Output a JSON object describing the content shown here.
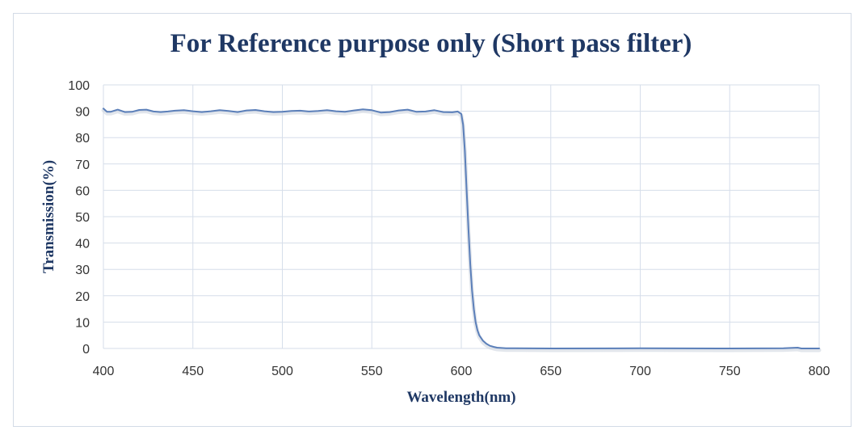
{
  "chart_data": {
    "type": "line",
    "title": "For Reference purpose only (Short pass filter)",
    "xlabel": "Wavelength(nm)",
    "ylabel": "Transmission(%)",
    "xlim": [
      400,
      800
    ],
    "ylim": [
      0,
      100
    ],
    "xticks": [
      400,
      450,
      500,
      550,
      600,
      650,
      700,
      750,
      800
    ],
    "yticks": [
      0,
      10,
      20,
      30,
      40,
      50,
      60,
      70,
      80,
      90,
      100
    ],
    "grid": true,
    "line_color": "#5b7fb9",
    "series": [
      {
        "x": [
          400,
          402,
          404,
          408,
          412,
          416,
          420,
          424,
          428,
          432,
          436,
          440,
          445,
          450,
          455,
          460,
          465,
          470,
          475,
          480,
          485,
          490,
          495,
          500,
          505,
          510,
          515,
          520,
          525,
          530,
          535,
          540,
          545,
          550,
          555,
          560,
          565,
          570,
          575,
          580,
          585,
          590,
          595,
          598,
          600,
          601,
          602,
          603,
          604,
          605,
          606,
          607,
          608,
          609,
          610,
          612,
          614,
          616,
          618,
          620,
          625,
          630,
          640,
          650,
          700,
          750,
          780,
          788,
          790,
          800
        ],
        "y": [
          91,
          89.8,
          89.8,
          90.6,
          89.7,
          89.8,
          90.5,
          90.6,
          89.9,
          89.7,
          89.9,
          90.2,
          90.4,
          90.0,
          89.7,
          90.0,
          90.4,
          90.1,
          89.7,
          90.3,
          90.5,
          90.0,
          89.7,
          89.8,
          90.1,
          90.2,
          89.9,
          90.1,
          90.4,
          90.0,
          89.8,
          90.3,
          90.7,
          90.4,
          89.5,
          89.7,
          90.3,
          90.6,
          89.8,
          89.9,
          90.4,
          89.7,
          89.6,
          89.9,
          89.0,
          85,
          75,
          60,
          45,
          32,
          22,
          15,
          10,
          7,
          5,
          3,
          1.8,
          1.0,
          0.6,
          0.3,
          0.1,
          0.05,
          0.02,
          0.0,
          0.05,
          0.0,
          0.1,
          0.3,
          0.0,
          0.0
        ]
      }
    ]
  }
}
